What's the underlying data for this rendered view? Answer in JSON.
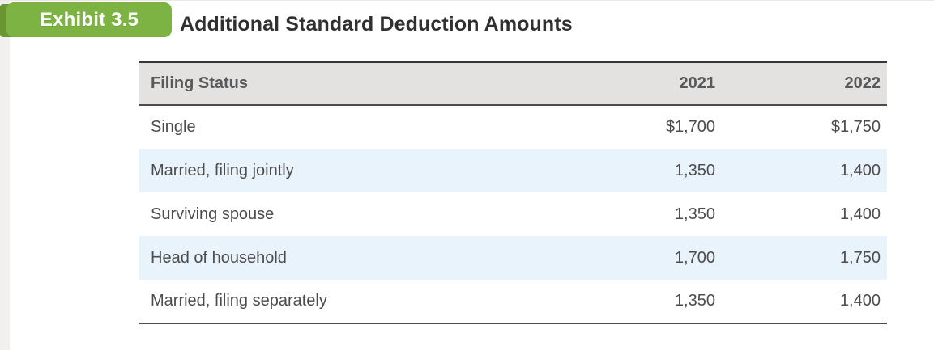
{
  "exhibit": {
    "badge_label": "Exhibit 3.5",
    "title": "Additional Standard Deduction Amounts"
  },
  "table": {
    "columns": {
      "filing_status": "Filing Status",
      "y2021": "2021",
      "y2022": "2022"
    },
    "rows": [
      {
        "filing_status": "Single",
        "y2021": "$1,700",
        "y2022": "$1,750"
      },
      {
        "filing_status": "Married, filing jointly",
        "y2021": "1,350",
        "y2022": "1,400"
      },
      {
        "filing_status": "Surviving spouse",
        "y2021": "1,350",
        "y2022": "1,400"
      },
      {
        "filing_status": "Head of household",
        "y2021": "1,700",
        "y2022": "1,750"
      },
      {
        "filing_status": "Married, filing separately",
        "y2021": "1,350",
        "y2022": "1,400"
      }
    ]
  },
  "colors": {
    "badge_green": "#7cb342",
    "badge_fold_green": "#699632",
    "header_bg": "#e3e2e1",
    "alt_row_bg": "#e9f3fb",
    "header_text": "#58595b",
    "body_text": "#4c4c4e",
    "title_text": "#303030",
    "left_bar_bg": "#f1f0ef"
  }
}
